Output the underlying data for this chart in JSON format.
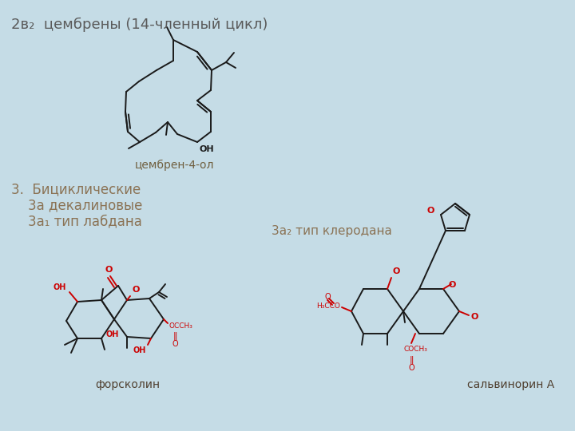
{
  "bg_color": "#c5dce6",
  "title_text": "2в₂  цембрены (14-членный цикл)",
  "title_color": "#5a5a5a",
  "title_fontsize": 13,
  "label_cembren": "цембрен-4-ол",
  "label_cembren_color": "#706040",
  "label_cembren_fontsize": 10,
  "section3_line1": "3.  Бициклические",
  "section3_line2": "    3а декалиновые",
  "section3_line3": "    3а₁ тип лабдана",
  "section3_color": "#8b7355",
  "section3_fontsize": 12,
  "label3a2": "3а₂ тип клеродана",
  "label3a2_color": "#8b7355",
  "label3a2_fontsize": 11,
  "label_forskolin": "форсколин",
  "label_salvinorin": "сальвинорин А",
  "label_mol_color": "#504030",
  "label_mol_fontsize": 10,
  "bc": "#1a1a1a",
  "rc": "#cc0000",
  "lw": 1.4
}
